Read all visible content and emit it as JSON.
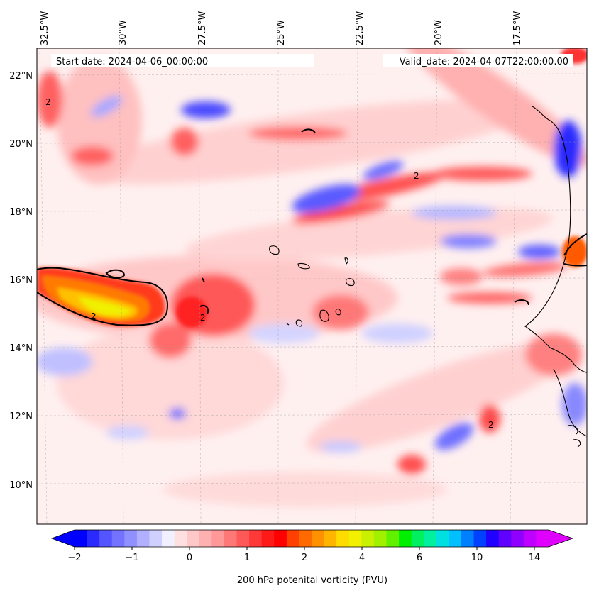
{
  "chart_data": {
    "type": "heatmap",
    "title_left": "Start date: 2024-04-06_00:00:00",
    "title_right": "Valid_date: 2024-04-07T22:00:00.00",
    "colorbar_label": "200 hPa potenital vorticity (PVU)",
    "lon_ticks": [
      "32.5°W",
      "30°W",
      "27.5°W",
      "25°W",
      "22.5°W",
      "20°W",
      "17.5°W"
    ],
    "lon_values": [
      -32.5,
      -30,
      -27.5,
      -25,
      -22.5,
      -20,
      -17.5
    ],
    "lat_ticks": [
      "22°N",
      "20°N",
      "18°N",
      "16°N",
      "14°N",
      "12°N",
      "10°N"
    ],
    "lat_values": [
      22,
      20,
      18,
      16,
      14,
      12,
      10
    ],
    "lon_range": [
      -32.5,
      -14.7
    ],
    "lat_range": [
      8.9,
      22.8
    ],
    "colorbar_ticks": [
      "−2",
      "−1",
      "0",
      "1",
      "2",
      "4",
      "6",
      "10",
      "14"
    ],
    "colorbar_colors": [
      "#0000ff",
      "#2a2aff",
      "#5555ff",
      "#7373ff",
      "#9090ff",
      "#b0b0ff",
      "#d0d0ff",
      "#f0f0ff",
      "#ffe0e0",
      "#ffc8c8",
      "#ffb0b0",
      "#ff9898",
      "#ff7878",
      "#ff5858",
      "#ff3838",
      "#ff1a1a",
      "#ff0000",
      "#ff4000",
      "#ff6a00",
      "#ff9000",
      "#ffb400",
      "#ffdc00",
      "#f0f000",
      "#c8f000",
      "#a0f000",
      "#60f000",
      "#00f000",
      "#00f060",
      "#00f0a0",
      "#00e0e0",
      "#00c0ff",
      "#0080ff",
      "#0040ff",
      "#2000ff",
      "#6000ff",
      "#9000ff",
      "#c000ff",
      "#e000ff"
    ],
    "contour_level": "2",
    "grid": true
  }
}
